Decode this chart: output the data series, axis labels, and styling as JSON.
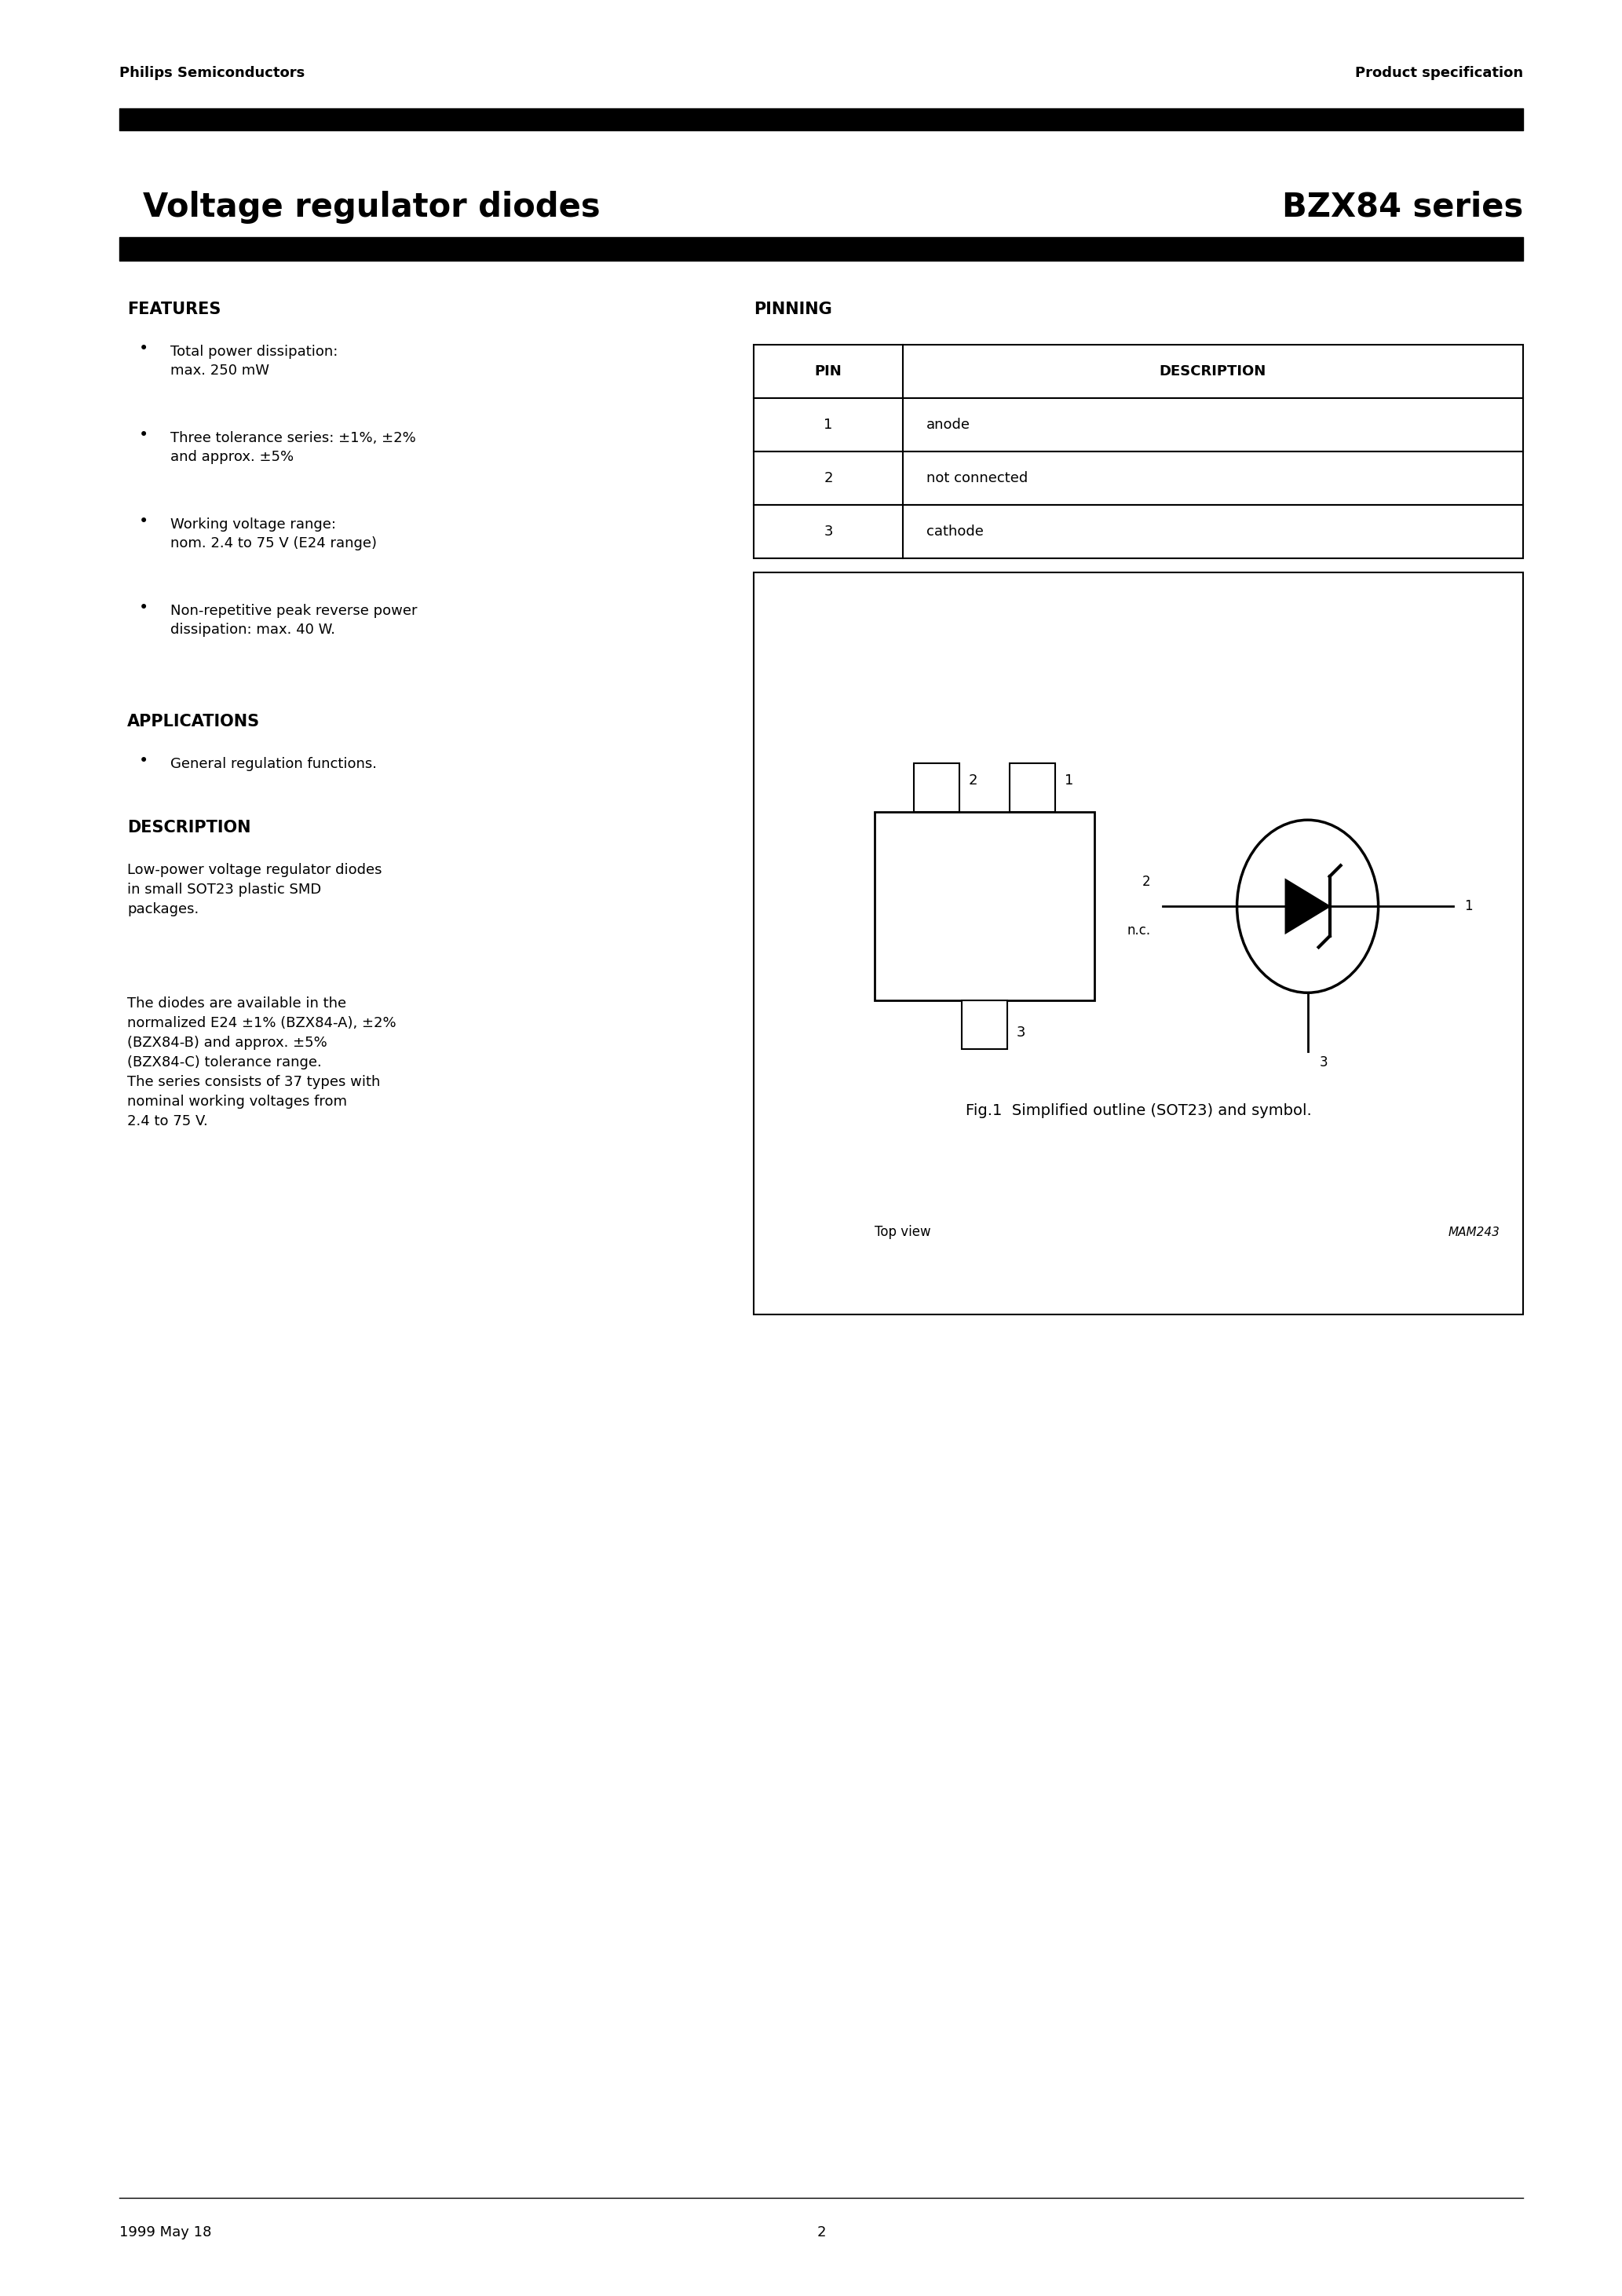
{
  "page_title_left": "Voltage regulator diodes",
  "page_title_right": "BZX84 series",
  "header_left": "Philips Semiconductors",
  "header_right": "Product specification",
  "features_title": "FEATURES",
  "features_bullets": [
    "Total power dissipation:\nmax. 250 mW",
    "Three tolerance series: ±1%, ±2%\nand approx. ±5%",
    "Working voltage range:\nnom. 2.4 to 75 V (E24 range)",
    "Non-repetitive peak reverse power\ndissipation: max. 40 W."
  ],
  "applications_title": "APPLICATIONS",
  "applications_bullets": [
    "General regulation functions."
  ],
  "description_title": "DESCRIPTION",
  "description_text1": "Low-power voltage regulator diodes\nin small SOT23 plastic SMD\npackages.",
  "description_text2": "The diodes are available in the\nnormalized E24 ±1% (BZX84-A), ±2%\n(BZX84-B) and approx. ±5%\n(BZX84-C) tolerance range.\nThe series consists of 37 types with\nnominal working voltages from\n2.4 to 75 V.",
  "pinning_title": "PINNING",
  "pin_table_headers": [
    "PIN",
    "DESCRIPTION"
  ],
  "pin_table_rows": [
    [
      "1",
      "anode"
    ],
    [
      "2",
      "not connected"
    ],
    [
      "3",
      "cathode"
    ]
  ],
  "fig_caption": "Fig.1  Simplified outline (SOT23) and symbol.",
  "top_view_label": "Top view",
  "mam_label": "MAM243",
  "footer_left": "1999 May 18",
  "footer_center": "2",
  "bg_color": "#ffffff",
  "text_color": "#000000"
}
